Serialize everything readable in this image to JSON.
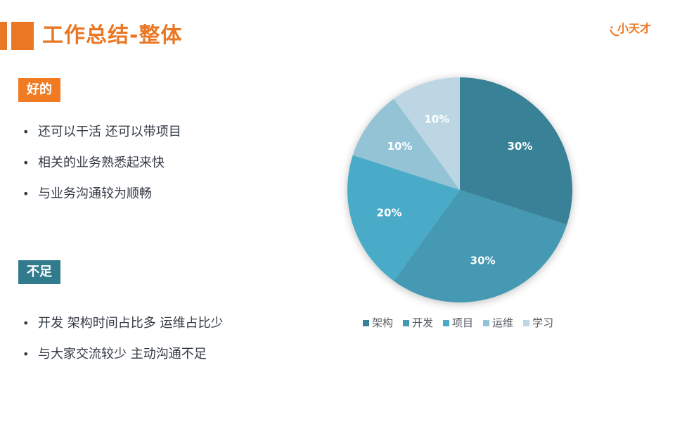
{
  "header": {
    "title": "工作总结-整体",
    "logo_text": "小天才",
    "accent_color": "#ea7724"
  },
  "good": {
    "label": "好的",
    "color": "#f07b22",
    "items": [
      "还可以干活 还可以带项目",
      "相关的业务熟悉起来快",
      "与业务沟通较为顺畅"
    ]
  },
  "bad": {
    "label": "不足",
    "color": "#317b8c",
    "items": [
      "开发 架构时间占比多 运维占比少",
      "与大家交流较少 主动沟通不足"
    ]
  },
  "chart_data": {
    "type": "pie",
    "categories": [
      "架构",
      "开发",
      "项目",
      "运维",
      "学习"
    ],
    "values": [
      30,
      30,
      20,
      10,
      10
    ],
    "labels": [
      "30%",
      "30%",
      "20%",
      "10%",
      "10%"
    ],
    "colors": [
      "#378196",
      "#4499b2",
      "#4aabc7",
      "#93c3d5",
      "#bcd7e3"
    ],
    "legend_position": "bottom",
    "title": ""
  }
}
